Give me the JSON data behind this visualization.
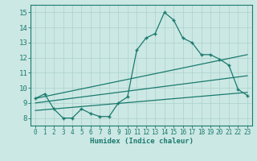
{
  "xlabel": "Humidex (Indice chaleur)",
  "background_color": "#cce8e4",
  "grid_color": "#b0d4cf",
  "line_color": "#1a7a6e",
  "xlim": [
    -0.5,
    23.5
  ],
  "ylim": [
    7.5,
    15.5
  ],
  "xticks": [
    0,
    1,
    2,
    3,
    4,
    5,
    6,
    7,
    8,
    9,
    10,
    11,
    12,
    13,
    14,
    15,
    16,
    17,
    18,
    19,
    20,
    21,
    22,
    23
  ],
  "yticks": [
    8,
    9,
    10,
    11,
    12,
    13,
    14,
    15
  ],
  "main_x": [
    0,
    1,
    2,
    3,
    4,
    5,
    6,
    7,
    8,
    9,
    10,
    11,
    12,
    13,
    14,
    15,
    16,
    17,
    18,
    19,
    20,
    21,
    22,
    23
  ],
  "main_y": [
    9.3,
    9.6,
    8.6,
    8.0,
    8.0,
    8.6,
    8.3,
    8.1,
    8.1,
    9.0,
    9.4,
    12.5,
    13.3,
    13.6,
    15.0,
    14.5,
    13.3,
    13.0,
    12.2,
    12.2,
    11.9,
    11.5,
    9.9,
    9.5
  ],
  "line2_x": [
    0,
    23
  ],
  "line2_y": [
    9.3,
    12.2
  ],
  "line3_x": [
    0,
    23
  ],
  "line3_y": [
    9.0,
    10.8
  ],
  "line4_x": [
    0,
    23
  ],
  "line4_y": [
    8.5,
    9.7
  ]
}
